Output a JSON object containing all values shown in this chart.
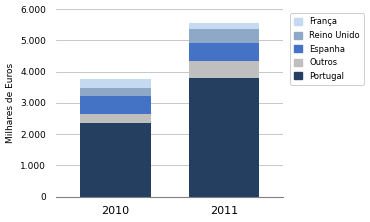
{
  "years": [
    "2010",
    "2011"
  ],
  "series": {
    "Portugal": [
      2350,
      3800
    ],
    "Outros": [
      280,
      550
    ],
    "Espanha": [
      600,
      550
    ],
    "Reino Unido": [
      250,
      450
    ],
    "França": [
      270,
      200
    ]
  },
  "colors": {
    "Portugal": "#243F60",
    "Outros": "#BFBFBF",
    "Espanha": "#4472C4",
    "Reino Unido": "#8EA9C8",
    "França": "#C5D9F1"
  },
  "legend_order": [
    "França",
    "Reino Unido",
    "Espanha",
    "Outros",
    "Portugal"
  ],
  "ylabel": "Milhares de Euros",
  "ylim": [
    0,
    6000
  ],
  "yticks": [
    0,
    1000,
    2000,
    3000,
    4000,
    5000,
    6000
  ],
  "ytick_labels": [
    "0",
    "1.000",
    "2.000",
    "3.000",
    "4.000",
    "5.000",
    "6.000"
  ],
  "background_color": "#FFFFFF",
  "plot_bg_color": "#FFFFFF",
  "bar_width": 0.65,
  "grid_color": "#BFBFBF"
}
